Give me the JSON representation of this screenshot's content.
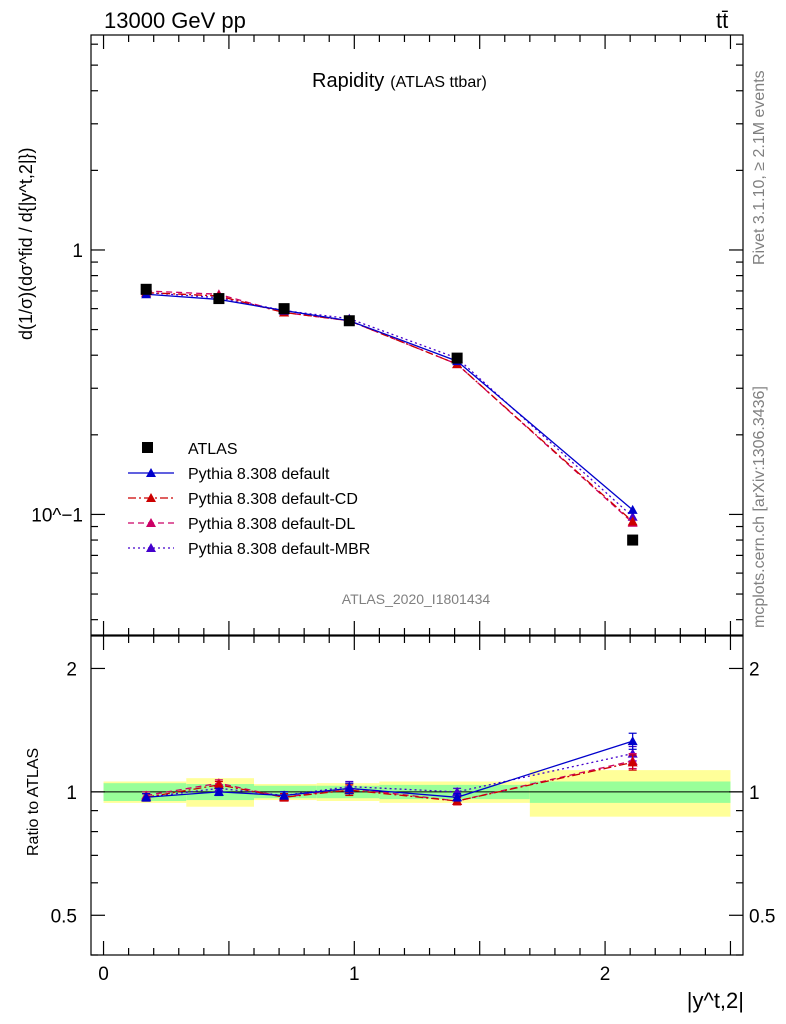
{
  "header": {
    "energy_label": "13000 GeV pp",
    "process_label": "tt̄"
  },
  "side_labels": {
    "rivet": "Rivet 3.1.10, ≥ 2.1M events",
    "mcplots": "mcplots.cern.ch [arXiv:1306.3436]"
  },
  "main_plot": {
    "title": "Rapidity",
    "title_sub": "(ATLAS ttbar)",
    "analysis_id": "ATLAS_2020_I1801434",
    "ylabel": "d(1/σ)(dσ^fid / d{|y^t,2|})",
    "ytick_labels": [
      "1",
      "10^−1"
    ]
  },
  "ratio_plot": {
    "ylabel": "Ratio to ATLAS",
    "ytick_labels": [
      "0.5",
      "1",
      "2"
    ]
  },
  "xaxis": {
    "label": "|y^t,2|",
    "tick_labels": [
      "0",
      "1",
      "2"
    ]
  },
  "chart_data": {
    "type": "line",
    "x": [
      0.17,
      0.46,
      0.72,
      0.98,
      1.41,
      2.11
    ],
    "x_edges": [
      0.0,
      0.33,
      0.6,
      0.85,
      1.1,
      1.7,
      2.5
    ],
    "xlim": [
      -0.05,
      2.55
    ],
    "main_ylim": [
      0.035,
      6.5
    ],
    "main_yscale": "log",
    "ratio_ylim": [
      0.4,
      2.4
    ],
    "ratio_yscale": "log",
    "legend_position": "lower-left",
    "data": {
      "name": "ATLAS",
      "color": "#000000",
      "values": [
        0.71,
        0.655,
        0.6,
        0.54,
        0.39,
        0.08
      ],
      "band_inner": [
        0.05,
        0.045,
        0.035,
        0.035,
        0.04,
        0.06
      ],
      "band_outer": [
        0.06,
        0.08,
        0.045,
        0.05,
        0.06,
        0.13
      ]
    },
    "series": [
      {
        "name": "Pythia 8.308 default",
        "color": "#0000cc",
        "dash": "",
        "values": [
          0.68,
          0.65,
          0.59,
          0.54,
          0.38,
          0.104
        ],
        "ratio": [
          0.97,
          1.0,
          0.98,
          1.02,
          0.97,
          1.33
        ],
        "ratio_err": [
          0.02,
          0.02,
          0.02,
          0.03,
          0.02,
          0.06
        ]
      },
      {
        "name": "Pythia 8.308 default-CD",
        "color": "#cc0000",
        "dash": "8,3,2,3",
        "values": [
          0.69,
          0.67,
          0.58,
          0.54,
          0.37,
          0.094
        ],
        "ratio": [
          0.97,
          1.04,
          0.97,
          1.01,
          0.95,
          1.18
        ],
        "ratio_err": [
          0.02,
          0.02,
          0.02,
          0.03,
          0.02,
          0.05
        ]
      },
      {
        "name": "Pythia 8.308 default-DL",
        "color": "#cc0066",
        "dash": "6,4",
        "values": [
          0.7,
          0.68,
          0.58,
          0.54,
          0.37,
          0.093
        ],
        "ratio": [
          0.98,
          1.05,
          0.97,
          1.02,
          0.95,
          1.19
        ],
        "ratio_err": [
          0.02,
          0.02,
          0.02,
          0.03,
          0.02,
          0.05
        ]
      },
      {
        "name": "Pythia 8.308 default-MBR",
        "color": "#4400cc",
        "dash": "2,3",
        "values": [
          0.69,
          0.66,
          0.59,
          0.55,
          0.39,
          0.098
        ],
        "ratio": [
          0.97,
          1.02,
          0.98,
          1.03,
          1.0,
          1.24
        ],
        "ratio_err": [
          0.02,
          0.02,
          0.02,
          0.03,
          0.02,
          0.05
        ]
      }
    ]
  }
}
